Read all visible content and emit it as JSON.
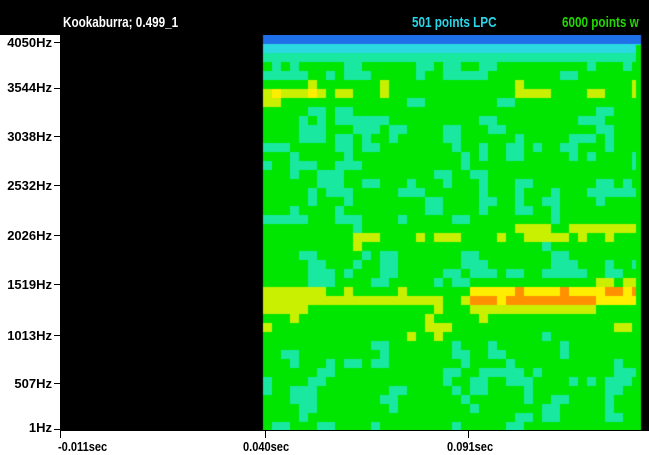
{
  "window": {
    "title": "Kookaburra; 0.499_1",
    "lpc_label": "501 points LPC",
    "fft_label": "6000 points w"
  },
  "colors": {
    "background": "#000000",
    "title_text": "#ffffff",
    "lpc_label": "#2ad7ea",
    "fft_label": "#22d800",
    "axis_text": "#000000"
  },
  "y_axis": {
    "labels": [
      "4050Hz",
      "3544Hz",
      "3038Hz",
      "2532Hz",
      "2026Hz",
      "1519Hz",
      "1013Hz",
      "507Hz",
      "1Hz"
    ]
  },
  "x_axis": {
    "labels": [
      "-0.011sec",
      "0.040sec",
      "0.091sec"
    ]
  },
  "spectrogram": {
    "freq_min_hz": 1,
    "freq_max_hz": 4050,
    "time_min_sec": -0.011,
    "data_start_sec": 0.04,
    "colormap": [
      "#000000",
      "#1e6fe8",
      "#2bd9e0",
      "#18e8a0",
      "#00e600",
      "#c8f000",
      "#ffee00",
      "#ff9000",
      "#e01010"
    ]
  }
}
